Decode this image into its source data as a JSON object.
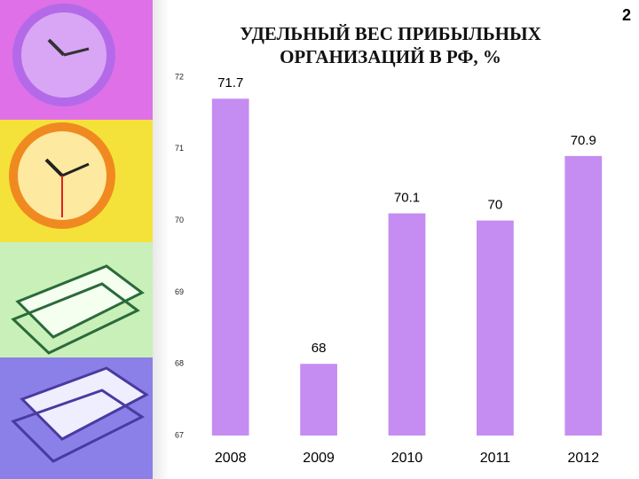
{
  "page_number": 2,
  "chart_data": {
    "type": "bar",
    "title": [
      "УДЕЛЬНЫЙ  ВЕС ПРИБЫЛЬНЫХ",
      "ОРГАНИЗАЦИЙ В РФ, %"
    ],
    "categories": [
      "2008",
      "2009",
      "2010",
      "2011",
      "2012"
    ],
    "values": [
      71.7,
      68,
      70.1,
      70,
      70.9
    ],
    "color": "#c58cf2",
    "ylim": [
      67,
      72
    ],
    "yticks": [
      67,
      68,
      69,
      70,
      71,
      72
    ],
    "data_labels": true
  }
}
